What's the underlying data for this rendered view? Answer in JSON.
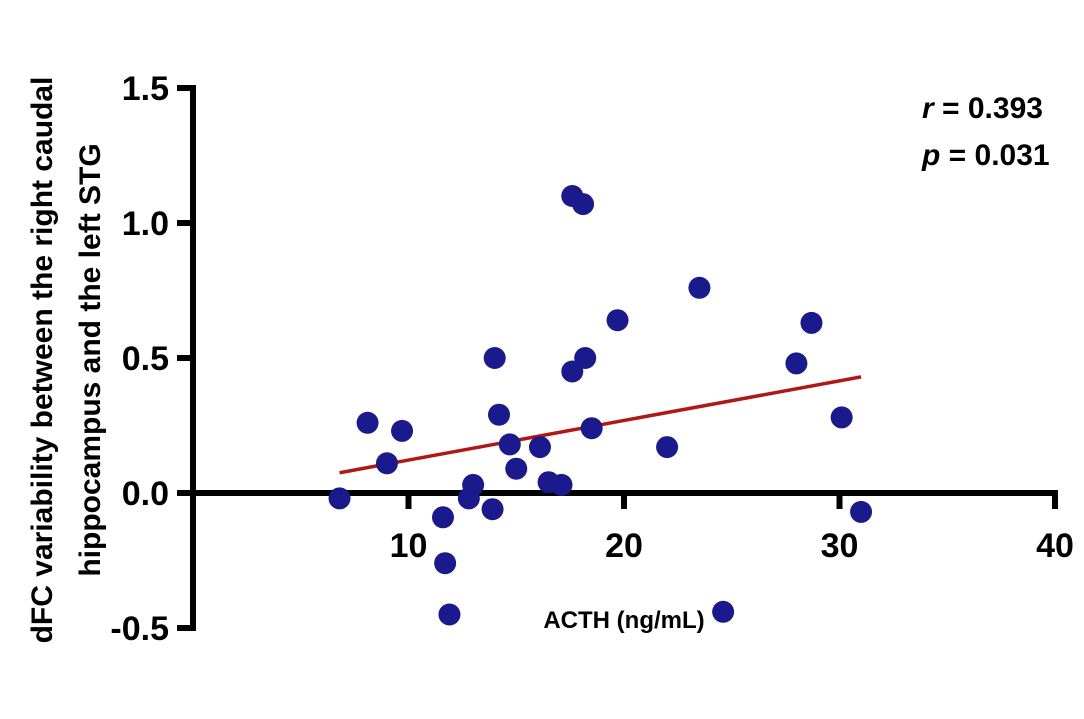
{
  "chart_data": {
    "type": "scatter",
    "xlabel": "ACTH (ng/mL)",
    "ylabel_lines": [
      "dFC variability between the right caudal",
      "hippocampus and the left STG"
    ],
    "xlim": [
      0,
      40
    ],
    "ylim": [
      -0.5,
      1.5
    ],
    "x_ticks": [
      10,
      20,
      30,
      40
    ],
    "x_tick_labels": [
      "10",
      "20",
      "30",
      "40"
    ],
    "y_ticks": [
      -0.5,
      0.0,
      0.5,
      1.0,
      1.5
    ],
    "y_tick_labels": [
      "-0.5",
      "0.0",
      "0.5",
      "1.0",
      "1.5"
    ],
    "grid": false,
    "point_color": "#1a1a8c",
    "fit_line_color": "#b01818",
    "annotations": {
      "r_symbol": "r",
      "r_value": " = 0.393",
      "p_symbol": "p",
      "p_value": " = 0.031"
    },
    "points": [
      {
        "x": 6.8,
        "y": -0.02
      },
      {
        "x": 8.1,
        "y": 0.26
      },
      {
        "x": 9.0,
        "y": 0.11
      },
      {
        "x": 9.7,
        "y": 0.23
      },
      {
        "x": 11.6,
        "y": -0.09
      },
      {
        "x": 11.7,
        "y": -0.26
      },
      {
        "x": 11.9,
        "y": -0.45
      },
      {
        "x": 12.8,
        "y": -0.02
      },
      {
        "x": 13.0,
        "y": 0.03
      },
      {
        "x": 13.9,
        "y": -0.06
      },
      {
        "x": 14.0,
        "y": 0.5
      },
      {
        "x": 14.2,
        "y": 0.29
      },
      {
        "x": 14.7,
        "y": 0.18
      },
      {
        "x": 15.0,
        "y": 0.09
      },
      {
        "x": 16.1,
        "y": 0.17
      },
      {
        "x": 16.5,
        "y": 0.04
      },
      {
        "x": 17.1,
        "y": 0.03
      },
      {
        "x": 17.6,
        "y": 1.1
      },
      {
        "x": 17.6,
        "y": 0.45
      },
      {
        "x": 18.1,
        "y": 1.07
      },
      {
        "x": 18.2,
        "y": 0.5
      },
      {
        "x": 18.5,
        "y": 0.24
      },
      {
        "x": 19.7,
        "y": 0.64
      },
      {
        "x": 22.0,
        "y": 0.17
      },
      {
        "x": 23.5,
        "y": 0.76
      },
      {
        "x": 24.6,
        "y": -0.44
      },
      {
        "x": 28.0,
        "y": 0.48
      },
      {
        "x": 28.7,
        "y": 0.63
      },
      {
        "x": 30.1,
        "y": 0.28
      },
      {
        "x": 31.0,
        "y": -0.07
      }
    ],
    "fit_line": {
      "x": [
        6.8,
        31.0
      ],
      "y": [
        0.075,
        0.43
      ]
    }
  }
}
